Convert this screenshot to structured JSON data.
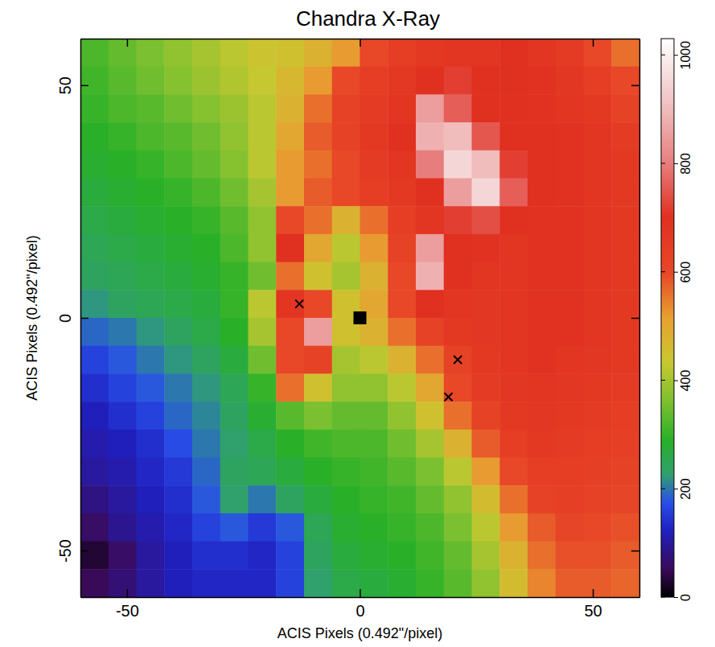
{
  "chart_data": {
    "type": "heatmap",
    "title": "Chandra X-Ray",
    "xlabel": "ACIS Pixels (0.492\"/pixel)",
    "ylabel": "ACIS Pixels (0.492\"/pixel)",
    "xlim": [
      -60,
      60
    ],
    "ylim": [
      -60,
      60
    ],
    "xticks": [
      -50,
      0,
      50
    ],
    "yticks": [
      -50,
      0,
      50
    ],
    "x": [
      -57,
      -51,
      -45,
      -39,
      -33,
      -27,
      -21,
      -15,
      -9,
      -3,
      3,
      9,
      15,
      21,
      27,
      33,
      39,
      45,
      51,
      57
    ],
    "y": [
      57,
      51,
      45,
      39,
      33,
      27,
      21,
      15,
      9,
      3,
      -3,
      -9,
      -15,
      -21,
      -27,
      -33,
      -39,
      -45,
      -51,
      -57
    ],
    "z": [
      [
        320,
        340,
        360,
        380,
        400,
        420,
        440,
        450,
        480,
        520,
        600,
        640,
        660,
        680,
        680,
        700,
        680,
        650,
        600,
        560
      ],
      [
        310,
        330,
        350,
        370,
        390,
        410,
        430,
        470,
        520,
        600,
        640,
        660,
        700,
        720,
        700,
        700,
        690,
        670,
        640,
        600
      ],
      [
        300,
        320,
        330,
        350,
        370,
        390,
        420,
        480,
        560,
        620,
        650,
        680,
        850,
        760,
        700,
        700,
        690,
        680,
        660,
        620
      ],
      [
        290,
        300,
        320,
        330,
        350,
        380,
        420,
        500,
        580,
        620,
        660,
        700,
        880,
        900,
        750,
        700,
        700,
        690,
        680,
        650
      ],
      [
        280,
        290,
        300,
        320,
        340,
        370,
        420,
        520,
        560,
        600,
        650,
        680,
        800,
        950,
        900,
        720,
        700,
        690,
        680,
        660
      ],
      [
        270,
        280,
        290,
        300,
        320,
        350,
        400,
        520,
        580,
        600,
        640,
        660,
        700,
        850,
        950,
        760,
        700,
        690,
        680,
        660
      ],
      [
        260,
        270,
        280,
        290,
        300,
        330,
        380,
        600,
        560,
        480,
        560,
        640,
        680,
        720,
        740,
        700,
        690,
        690,
        680,
        660
      ],
      [
        250,
        260,
        270,
        280,
        290,
        320,
        380,
        700,
        500,
        420,
        520,
        620,
        850,
        700,
        690,
        680,
        690,
        690,
        680,
        660
      ],
      [
        240,
        250,
        260,
        270,
        280,
        300,
        350,
        560,
        450,
        400,
        480,
        600,
        880,
        700,
        680,
        680,
        690,
        690,
        680,
        660
      ],
      [
        220,
        240,
        250,
        260,
        270,
        300,
        420,
        680,
        600,
        450,
        500,
        600,
        700,
        680,
        670,
        680,
        690,
        690,
        680,
        660
      ],
      [
        190,
        200,
        220,
        240,
        260,
        290,
        400,
        600,
        850,
        450,
        480,
        560,
        620,
        660,
        670,
        680,
        690,
        690,
        680,
        660
      ],
      [
        160,
        180,
        200,
        220,
        240,
        270,
        350,
        600,
        620,
        400,
        420,
        480,
        560,
        620,
        660,
        680,
        690,
        680,
        670,
        660
      ],
      [
        140,
        160,
        180,
        200,
        220,
        250,
        300,
        560,
        450,
        380,
        380,
        420,
        500,
        600,
        650,
        670,
        680,
        670,
        660,
        650
      ],
      [
        120,
        140,
        160,
        190,
        210,
        240,
        280,
        330,
        360,
        340,
        340,
        380,
        450,
        560,
        620,
        660,
        670,
        660,
        650,
        640
      ],
      [
        110,
        120,
        140,
        170,
        200,
        230,
        260,
        290,
        310,
        320,
        320,
        350,
        400,
        480,
        580,
        640,
        660,
        650,
        640,
        630
      ],
      [
        100,
        110,
        130,
        150,
        190,
        240,
        250,
        270,
        290,
        300,
        310,
        330,
        360,
        420,
        520,
        600,
        640,
        640,
        630,
        620
      ],
      [
        80,
        100,
        120,
        140,
        180,
        230,
        200,
        240,
        270,
        290,
        300,
        310,
        340,
        380,
        460,
        560,
        620,
        630,
        620,
        610
      ],
      [
        60,
        90,
        110,
        130,
        160,
        180,
        150,
        180,
        250,
        280,
        290,
        300,
        320,
        360,
        420,
        520,
        580,
        610,
        600,
        590
      ],
      [
        30,
        60,
        100,
        120,
        140,
        140,
        130,
        160,
        240,
        270,
        280,
        290,
        310,
        340,
        400,
        480,
        560,
        590,
        590,
        580
      ],
      [
        50,
        70,
        100,
        120,
        130,
        130,
        130,
        160,
        230,
        260,
        270,
        280,
        300,
        330,
        380,
        460,
        540,
        580,
        580,
        570
      ]
    ],
    "colorbar": {
      "lim": [
        0,
        1030
      ],
      "ticks": [
        0,
        200,
        400,
        600,
        800,
        1000
      ]
    },
    "series": [
      {
        "type": "scatter",
        "marker": "x",
        "color": "#000000",
        "x": [
          -13,
          21,
          19
        ],
        "y": [
          3,
          -9,
          -17
        ]
      },
      {
        "type": "scatter",
        "marker": "square",
        "color": "#000000",
        "x": [
          0
        ],
        "y": [
          0
        ]
      }
    ]
  }
}
